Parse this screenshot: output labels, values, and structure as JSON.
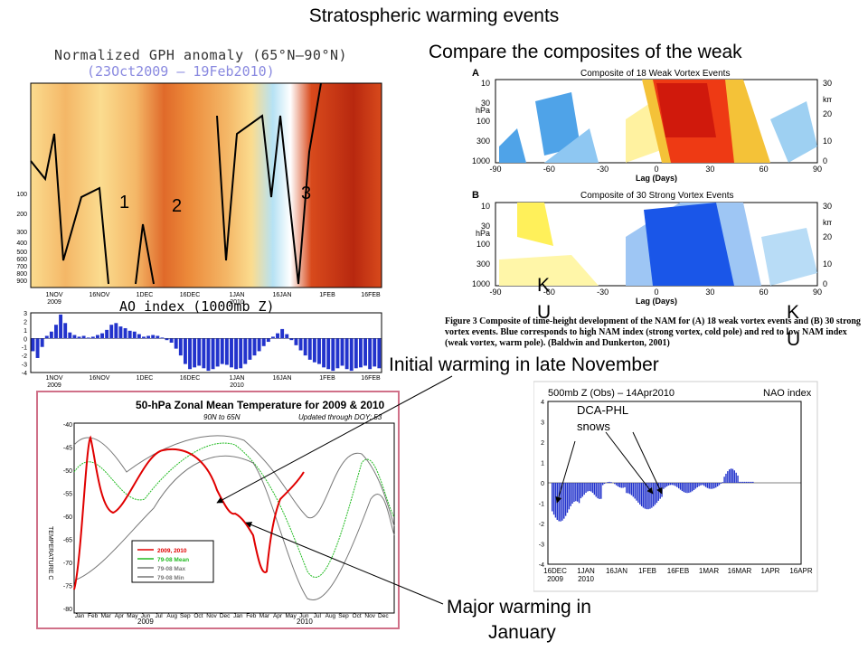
{
  "slide": {
    "title": "Stratospheric warming events",
    "compare_text": "Compare the composites of the weak",
    "ann_initial": "Initial warming in late November",
    "ann_major_l1": "Major warming in",
    "ann_major_l2": "January",
    "ku1_a": "K",
    "ku1_b": "U",
    "ku2_a": "K",
    "ku2_b": "U"
  },
  "gph": {
    "title": "Normalized GPH anomaly (65°N–90°N)",
    "subtitle": "(23Oct2009 – 19Feb2010)",
    "yticks": [
      "100",
      "200",
      "300",
      "400",
      "500",
      "600",
      "700",
      "800",
      "900"
    ],
    "xticks": [
      "1NOV\n2009",
      "16NOV",
      "1DEC",
      "16DEC",
      "1JAN\n2010",
      "16JAN",
      "1FEB",
      "16FEB"
    ],
    "events": [
      "1",
      "2",
      "3"
    ],
    "colors": {
      "dark_red": "#b8280f",
      "red": "#d84a1c",
      "orange": "#ec8a3a",
      "light_orange": "#f4b767",
      "pale": "#fbdc8f",
      "light_blue": "#b6e2f4",
      "blue": "#5aa8e6"
    }
  },
  "ao": {
    "title": "AO index (1000mb Z)",
    "yticks": [
      "3",
      "2",
      "1",
      "0",
      "-1",
      "-2",
      "-3",
      "-4"
    ],
    "xticks": [
      "1NOV\n2009",
      "16NOV",
      "1DEC",
      "16DEC",
      "1JAN\n2010",
      "16JAN",
      "1FEB",
      "16FEB"
    ],
    "bar_color": "#2233cc",
    "values": [
      -1.5,
      -2.3,
      -1.0,
      0.3,
      0.8,
      1.6,
      2.8,
      1.8,
      0.7,
      0.4,
      0.2,
      0.3,
      0.1,
      0.2,
      0.4,
      0.6,
      1.0,
      1.6,
      1.8,
      1.4,
      1.2,
      0.9,
      0.8,
      0.5,
      0.2,
      0.3,
      0.4,
      0.3,
      0.1,
      -0.2,
      -0.5,
      -1.2,
      -2.0,
      -3.0,
      -3.6,
      -3.4,
      -3.2,
      -3.5,
      -3.8,
      -3.6,
      -3.3,
      -3.0,
      -3.1,
      -3.4,
      -3.6,
      -3.5,
      -3.0,
      -2.5,
      -2.0,
      -1.5,
      -0.9,
      -0.4,
      0.2,
      0.6,
      1.1,
      0.5,
      -0.2,
      -0.8,
      -1.4,
      -2.0,
      -2.5,
      -2.8,
      -3.0,
      -3.4,
      -3.6,
      -3.8,
      -3.5,
      -3.2,
      -3.6,
      -3.8,
      -3.5,
      -3.4,
      -3.2,
      -3.6,
      -3.3,
      -3.5
    ]
  },
  "composite": {
    "a_label": "A",
    "a_title": "Composite of 18 Weak Vortex Events",
    "b_label": "B",
    "b_title": "Composite of 30 Strong Vortex Events",
    "left_ticks": [
      "10",
      "30",
      "hPa",
      "100",
      "300",
      "1000"
    ],
    "right_ticks": [
      "30",
      "km",
      "20",
      "10",
      "0"
    ],
    "xticks": [
      "-90",
      "-60",
      "-30",
      "0",
      "30",
      "60",
      "90"
    ],
    "xlabel": "Lag (Days)",
    "caption": "Figure 3 Composite of time-height development of the NAM for (A) 18 weak vortex events and (B) 30 strong vortex events. Blue corresponds to high NAM index (strong vortex, cold pole) and red to low NAM index (weak vortex, warm pole). (Baldwin and Dunkerton, 2001)"
  },
  "temp": {
    "title": "50-hPa Zonal Mean Temperature for 2009 & 2010",
    "subtitle": "90N to 65N",
    "updated": "Updated through DOY: 53",
    "ylabel": "TEMPERATURE C",
    "yticks": [
      "-40",
      "-45",
      "-50",
      "-55",
      "-60",
      "-65",
      "-70",
      "-75",
      "-80"
    ],
    "xticks": [
      "Jan",
      "Feb",
      "Mar",
      "Apr",
      "May",
      "Jun",
      "Jul",
      "Aug",
      "Sep",
      "Oct",
      "Nov",
      "Dec",
      "Jan",
      "Feb",
      "Mar",
      "Apr",
      "May",
      "Jun",
      "Jul",
      "Aug",
      "Sep",
      "Oct",
      "Nov",
      "Dec"
    ],
    "years": [
      "2009",
      "2010"
    ],
    "legend": [
      {
        "label": "2009, 2010",
        "color": "#e00000"
      },
      {
        "label": "79-08 Mean",
        "color": "#22bb22"
      },
      {
        "label": "79-08 Max",
        "color": "#777777"
      },
      {
        "label": "79-08 Min",
        "color": "#777777"
      }
    ]
  },
  "nao": {
    "title": "500mb Z (Obs) – 14Apr2010",
    "index_label": "NAO index",
    "yticks": [
      "4",
      "3",
      "2",
      "1",
      "0",
      "-1",
      "-2",
      "-3",
      "-4"
    ],
    "xticks": [
      "16DEC\n2009",
      "1JAN\n2010",
      "16JAN",
      "1FEB",
      "16FEB",
      "1MAR",
      "16MAR",
      "1APR",
      "16APR"
    ],
    "ann1": "DCA-PHL",
    "ann2": "snows",
    "bar_color": "#2233cc"
  }
}
